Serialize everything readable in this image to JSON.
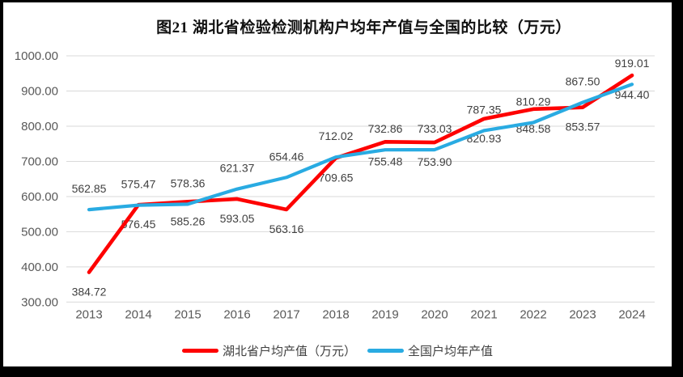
{
  "title": "图21 湖北省检验检测机构户均年产值与全国的比较（万元）",
  "chart_data": {
    "type": "line",
    "title": "图21 湖北省检验检测机构户均年产值与全国的比较（万元）",
    "categories": [
      "2013",
      "2014",
      "2015",
      "2016",
      "2017",
      "2018",
      "2019",
      "2020",
      "2021",
      "2022",
      "2023",
      "2024"
    ],
    "series": [
      {
        "name": "湖北省户均产值（万元）",
        "color": "#FE0000",
        "stroke_width": 4.6,
        "label_position": "below",
        "values": [
          384.72,
          576.45,
          585.26,
          593.05,
          563.16,
          709.65,
          755.48,
          753.9,
          820.93,
          848.58,
          853.57,
          944.4
        ]
      },
      {
        "name": "全国户均年产值",
        "color": "#29ABE2",
        "stroke_width": 4.2,
        "label_position": "above",
        "values": [
          562.85,
          575.47,
          578.36,
          621.37,
          654.46,
          712.02,
          732.86,
          733.03,
          787.35,
          810.29,
          867.5,
          919.01
        ]
      }
    ],
    "xlabel": "",
    "ylabel": "",
    "ylim": [
      300,
      1000
    ],
    "ytick_step": 100,
    "ytick_labels": [
      "1000.00",
      "900.00",
      "800.00",
      "700.00",
      "600.00",
      "500.00",
      "400.00",
      "300.00"
    ],
    "grid": true,
    "legend_position": "bottom",
    "data_label_decimals": 2
  },
  "legend": {
    "items": [
      {
        "label": "湖北省户均产值（万元）",
        "color": "#FE0000"
      },
      {
        "label": "全国户均年产值",
        "color": "#29ABE2"
      }
    ]
  },
  "colors": {
    "series_hubei": "#FE0000",
    "series_national": "#29ABE2",
    "gridline": "#D9D9D9",
    "axis_text": "#595959",
    "data_label_text": "#404040",
    "frame": "#000000",
    "canvas": "#FFFFFF"
  }
}
